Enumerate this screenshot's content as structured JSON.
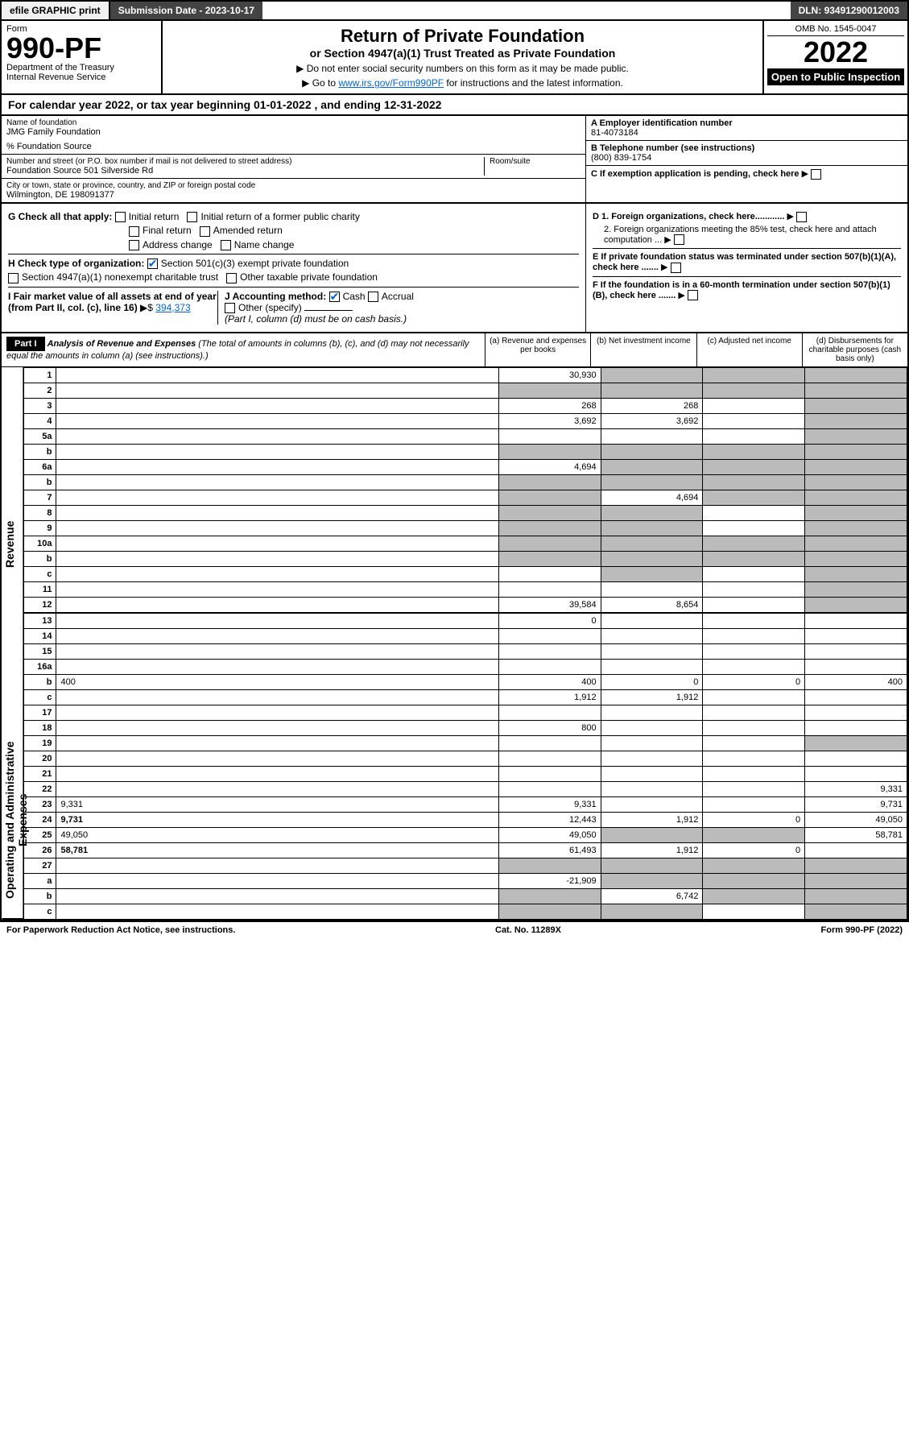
{
  "topbar": {
    "efile": "efile GRAPHIC print",
    "subdate_label": "Submission Date - ",
    "subdate": "2023-10-17",
    "dln_label": "DLN: ",
    "dln": "93491290012003"
  },
  "header": {
    "form_label": "Form",
    "form_no": "990-PF",
    "dept": "Department of the Treasury",
    "irs": "Internal Revenue Service",
    "title": "Return of Private Foundation",
    "subtitle": "or Section 4947(a)(1) Trust Treated as Private Foundation",
    "note1": "▶ Do not enter social security numbers on this form as it may be made public.",
    "note2_pre": "▶ Go to ",
    "note2_link": "www.irs.gov/Form990PF",
    "note2_post": " for instructions and the latest information.",
    "omb": "OMB No. 1545-0047",
    "year": "2022",
    "open": "Open to Public Inspection"
  },
  "cal": "For calendar year 2022, or tax year beginning 01-01-2022        , and ending 12-31-2022",
  "name": {
    "lbl": "Name of foundation",
    "val": "JMG Family Foundation",
    "pct": "% Foundation Source"
  },
  "addr": {
    "lbl": "Number and street (or P.O. box number if mail is not delivered to street address)",
    "val": "Foundation Source 501 Silverside Rd",
    "room_lbl": "Room/suite",
    "room": ""
  },
  "city": {
    "lbl": "City or town, state or province, country, and ZIP or foreign postal code",
    "val": "Wilmington, DE  198091377"
  },
  "ein": {
    "lbl": "A Employer identification number",
    "val": "81-4073184"
  },
  "tel": {
    "lbl": "B Telephone number (see instructions)",
    "val": "(800) 839-1754"
  },
  "c": "C If exemption application is pending, check here",
  "d1": "D 1. Foreign organizations, check here............",
  "d2": "2. Foreign organizations meeting the 85% test, check here and attach computation ...",
  "e": "E If private foundation status was terminated under section 507(b)(1)(A), check here .......",
  "f": "F If the foundation is in a 60-month termination under section 507(b)(1)(B), check here .......",
  "g": {
    "lbl": "G Check all that apply:",
    "opts": [
      "Initial return",
      "Final return",
      "Address change",
      "Initial return of a former public charity",
      "Amended return",
      "Name change"
    ]
  },
  "h": {
    "lbl": "H Check type of organization:",
    "opt1": "Section 501(c)(3) exempt private foundation",
    "opt2": "Section 4947(a)(1) nonexempt charitable trust",
    "opt3": "Other taxable private foundation"
  },
  "i": {
    "lbl": "I Fair market value of all assets at end of year (from Part II, col. (c), line 16)",
    "val": "394,373"
  },
  "j": {
    "lbl": "J Accounting method:",
    "cash": "Cash",
    "accrual": "Accrual",
    "other": "Other (specify)",
    "note": "(Part I, column (d) must be on cash basis.)"
  },
  "part1": {
    "label": "Part I",
    "title": "Analysis of Revenue and Expenses",
    "note": "(The total of amounts in columns (b), (c), and (d) may not necessarily equal the amounts in column (a) (see instructions).)",
    "cols": [
      "(a) Revenue and expenses per books",
      "(b) Net investment income",
      "(c) Adjusted net income",
      "(d) Disbursements for charitable purposes (cash basis only)"
    ]
  },
  "side": {
    "rev": "Revenue",
    "exp": "Operating and Administrative Expenses"
  },
  "rows": [
    {
      "n": "1",
      "d": "",
      "a": "30,930",
      "b": "",
      "c": "",
      "sb": true,
      "sc": true,
      "sd": true
    },
    {
      "n": "2",
      "d": "",
      "a": "",
      "b": "",
      "c": "",
      "sa": true,
      "sb": true,
      "sc": true,
      "sd": true
    },
    {
      "n": "3",
      "d": "",
      "a": "268",
      "b": "268",
      "c": "",
      "sd": true
    },
    {
      "n": "4",
      "d": "",
      "a": "3,692",
      "b": "3,692",
      "c": "",
      "sd": true
    },
    {
      "n": "5a",
      "d": "",
      "a": "",
      "b": "",
      "c": "",
      "sd": true
    },
    {
      "n": "b",
      "d": "",
      "a": "",
      "b": "",
      "c": "",
      "sa": true,
      "sb": true,
      "sc": true,
      "sd": true
    },
    {
      "n": "6a",
      "d": "",
      "a": "4,694",
      "b": "",
      "c": "",
      "sb": true,
      "sc": true,
      "sd": true
    },
    {
      "n": "b",
      "d": "",
      "a": "",
      "b": "",
      "c": "",
      "sa": true,
      "sb": true,
      "sc": true,
      "sd": true
    },
    {
      "n": "7",
      "d": "",
      "a": "",
      "b": "4,694",
      "c": "",
      "sa": true,
      "sc": true,
      "sd": true
    },
    {
      "n": "8",
      "d": "",
      "a": "",
      "b": "",
      "c": "",
      "sa": true,
      "sb": true,
      "sd": true
    },
    {
      "n": "9",
      "d": "",
      "a": "",
      "b": "",
      "c": "",
      "sa": true,
      "sb": true,
      "sd": true
    },
    {
      "n": "10a",
      "d": "",
      "a": "",
      "b": "",
      "c": "",
      "sa": true,
      "sb": true,
      "sc": true,
      "sd": true
    },
    {
      "n": "b",
      "d": "",
      "a": "",
      "b": "",
      "c": "",
      "sa": true,
      "sb": true,
      "sc": true,
      "sd": true
    },
    {
      "n": "c",
      "d": "",
      "a": "",
      "b": "",
      "c": "",
      "sb": true,
      "sd": true
    },
    {
      "n": "11",
      "d": "",
      "a": "",
      "b": "",
      "c": "",
      "sd": true
    },
    {
      "n": "12",
      "d": "",
      "bold": true,
      "a": "39,584",
      "b": "8,654",
      "c": "",
      "sd": true
    },
    {
      "n": "13",
      "d": "",
      "a": "0",
      "b": "",
      "c": ""
    },
    {
      "n": "14",
      "d": "",
      "a": "",
      "b": "",
      "c": ""
    },
    {
      "n": "15",
      "d": "",
      "a": "",
      "b": "",
      "c": ""
    },
    {
      "n": "16a",
      "d": "",
      "a": "",
      "b": "",
      "c": ""
    },
    {
      "n": "b",
      "d": "400",
      "a": "400",
      "b": "0",
      "c": "0"
    },
    {
      "n": "c",
      "d": "",
      "a": "1,912",
      "b": "1,912",
      "c": ""
    },
    {
      "n": "17",
      "d": "",
      "a": "",
      "b": "",
      "c": ""
    },
    {
      "n": "18",
      "d": "",
      "a": "800",
      "b": "",
      "c": ""
    },
    {
      "n": "19",
      "d": "",
      "a": "",
      "b": "",
      "c": "",
      "sd": true
    },
    {
      "n": "20",
      "d": "",
      "a": "",
      "b": "",
      "c": ""
    },
    {
      "n": "21",
      "d": "",
      "a": "",
      "b": "",
      "c": ""
    },
    {
      "n": "22",
      "d": "",
      "a": "",
      "b": "",
      "c": ""
    },
    {
      "n": "23",
      "d": "9,331",
      "a": "9,331",
      "b": "",
      "c": ""
    },
    {
      "n": "24",
      "d": "9,731",
      "bold": true,
      "a": "12,443",
      "b": "1,912",
      "c": "0"
    },
    {
      "n": "25",
      "d": "49,050",
      "a": "49,050",
      "b": "",
      "c": "",
      "sb": true,
      "sc": true
    },
    {
      "n": "26",
      "d": "58,781",
      "bold": true,
      "a": "61,493",
      "b": "1,912",
      "c": "0"
    },
    {
      "n": "27",
      "d": "",
      "a": "",
      "b": "",
      "c": "",
      "sa": true,
      "sb": true,
      "sc": true,
      "sd": true
    },
    {
      "n": "a",
      "d": "",
      "bold": true,
      "a": "-21,909",
      "b": "",
      "c": "",
      "sb": true,
      "sc": true,
      "sd": true
    },
    {
      "n": "b",
      "d": "",
      "bold": true,
      "a": "",
      "b": "6,742",
      "c": "",
      "sa": true,
      "sc": true,
      "sd": true
    },
    {
      "n": "c",
      "d": "",
      "bold": true,
      "a": "",
      "b": "",
      "c": "",
      "sa": true,
      "sb": true,
      "sd": true
    }
  ],
  "footer": {
    "left": "For Paperwork Reduction Act Notice, see instructions.",
    "mid": "Cat. No. 11289X",
    "right": "Form 990-PF (2022)"
  }
}
